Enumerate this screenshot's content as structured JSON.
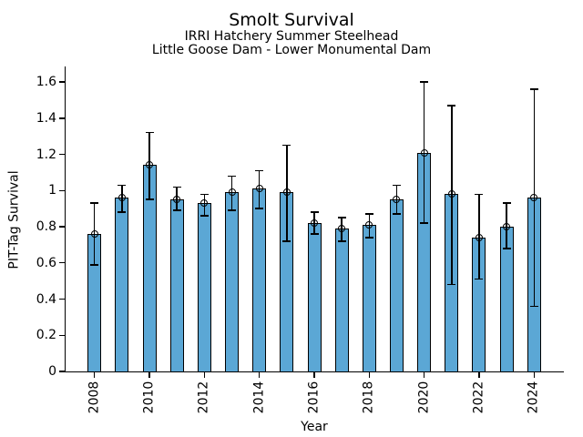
{
  "chart_data": {
    "type": "bar",
    "title": "Smolt Survival",
    "subtitle_lines": [
      "IRRI Hatchery Summer Steelhead",
      "Little Goose Dam - Lower Monumental Dam"
    ],
    "xlabel": "Year",
    "ylabel": "PIT-Tag Survival",
    "categories": [
      2008,
      2009,
      2010,
      2011,
      2012,
      2013,
      2014,
      2015,
      2016,
      2017,
      2018,
      2019,
      2020,
      2021,
      2022,
      2023,
      2024
    ],
    "values": [
      0.76,
      0.96,
      1.14,
      0.95,
      0.93,
      0.99,
      1.01,
      0.99,
      0.82,
      0.79,
      0.81,
      0.95,
      1.21,
      0.98,
      0.74,
      0.8,
      0.96
    ],
    "error_low": [
      0.59,
      0.88,
      0.95,
      0.89,
      0.86,
      0.89,
      0.9,
      0.72,
      0.76,
      0.72,
      0.74,
      0.87,
      0.82,
      0.48,
      0.51,
      0.68,
      0.36
    ],
    "error_high": [
      0.93,
      1.03,
      1.32,
      1.02,
      0.98,
      1.08,
      1.11,
      1.25,
      0.88,
      0.85,
      0.87,
      1.03,
      1.6,
      1.47,
      0.98,
      0.93,
      1.56
    ],
    "ytick_values": [
      0,
      0.2,
      0.4,
      0.6,
      0.8,
      1.0,
      1.2,
      1.4,
      1.6
    ],
    "ytick_labels": [
      "0",
      "0.2",
      "0.4",
      "0.6",
      "0.8",
      "1",
      "1.2",
      "1.4",
      "1.6"
    ],
    "xtick_values": [
      2008,
      2010,
      2012,
      2014,
      2016,
      2018,
      2020,
      2022,
      2024
    ],
    "xtick_labels": [
      "2008",
      "2010",
      "2012",
      "2014",
      "2016",
      "2018",
      "2020",
      "2022",
      "2024"
    ],
    "ylim": [
      0,
      1.69
    ],
    "xlim": [
      2007,
      2025
    ],
    "grid": false,
    "legend_position": "none",
    "marker": "open-circle",
    "bar_color": "#5BA7D5",
    "bar_edge_color": "#000000",
    "error_color": "#000000",
    "background_color": "#FFFFFF",
    "text_color": "#000000"
  }
}
